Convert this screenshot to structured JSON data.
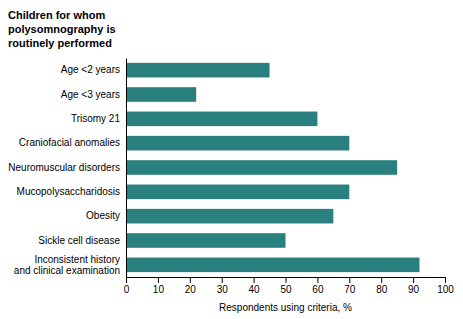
{
  "chart_data": {
    "type": "bar",
    "orientation": "horizontal",
    "title": "Children for whom\npolysomnography is\nroutinely performed",
    "xlabel": "Respondents using criteria, %",
    "categories": [
      "Inconsistent history\nand clinical examination",
      "Sickle cell disease",
      "Obesity",
      "Mucopolysaccharidosis",
      "Neuromuscular disorders",
      "Craniofacial anomalies",
      "Trisomy 21",
      "Age <3 years",
      "Age <2 years"
    ],
    "values": [
      92,
      50,
      65,
      70,
      85,
      70,
      60,
      22,
      45
    ],
    "color": "#2a7f7f",
    "xlim": [
      0,
      100
    ],
    "xticks": [
      0,
      10,
      20,
      30,
      40,
      50,
      60,
      70,
      80,
      90,
      100
    ],
    "grid": false
  }
}
